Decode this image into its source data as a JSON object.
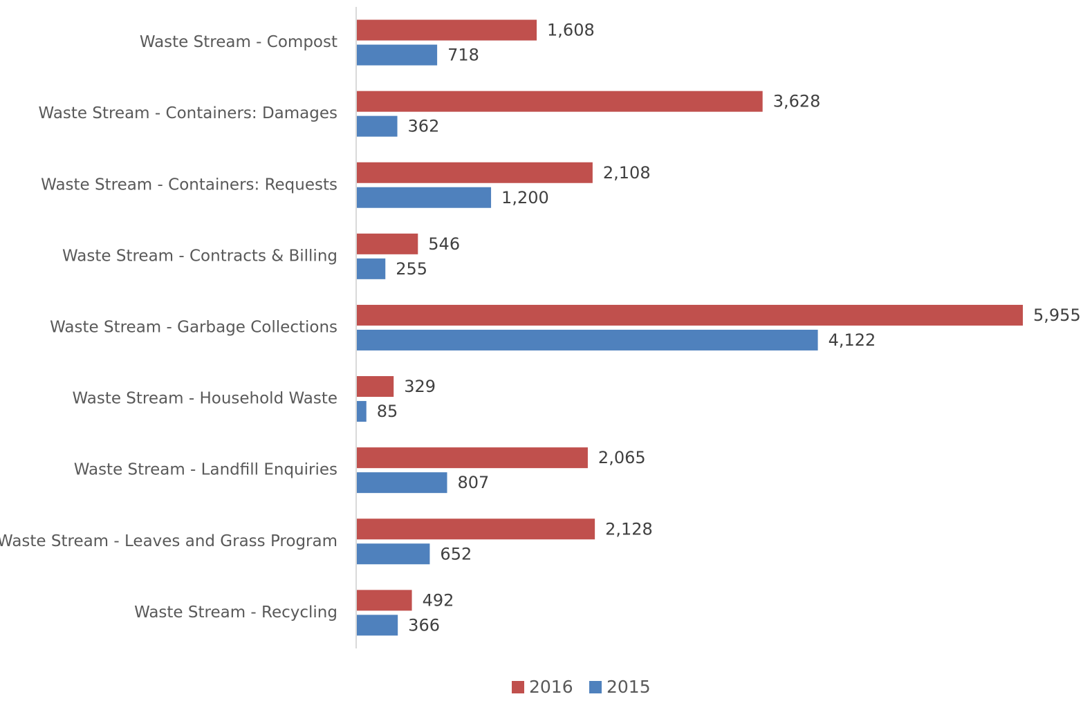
{
  "chart_data": {
    "type": "bar",
    "orientation": "horizontal",
    "categories": [
      "Waste Stream - Compost",
      "Waste Stream - Containers: Damages",
      "Waste Stream - Containers: Requests",
      "Waste Stream - Contracts & Billing",
      "Waste Stream - Garbage Collections",
      "Waste Stream - Household Waste",
      "Waste Stream - Landfill Enquiries",
      "Waste Stream - Leaves and Grass Program",
      "Waste Stream - Recycling"
    ],
    "series": [
      {
        "name": "2016",
        "color": "#c0504d",
        "values": [
          1608,
          3628,
          2108,
          546,
          5955,
          329,
          2065,
          2128,
          492
        ],
        "value_labels": [
          "1,608",
          "3,628",
          "2,108",
          "546",
          "5,955",
          "329",
          "2,065",
          "2,128",
          "492"
        ]
      },
      {
        "name": "2015",
        "color": "#4f81bd",
        "values": [
          718,
          362,
          1200,
          255,
          4122,
          85,
          807,
          652,
          366
        ],
        "value_labels": [
          "718",
          "362",
          "1,200",
          "255",
          "4,122",
          "85",
          "807",
          "652",
          "366"
        ]
      }
    ],
    "legend": "bottom"
  }
}
